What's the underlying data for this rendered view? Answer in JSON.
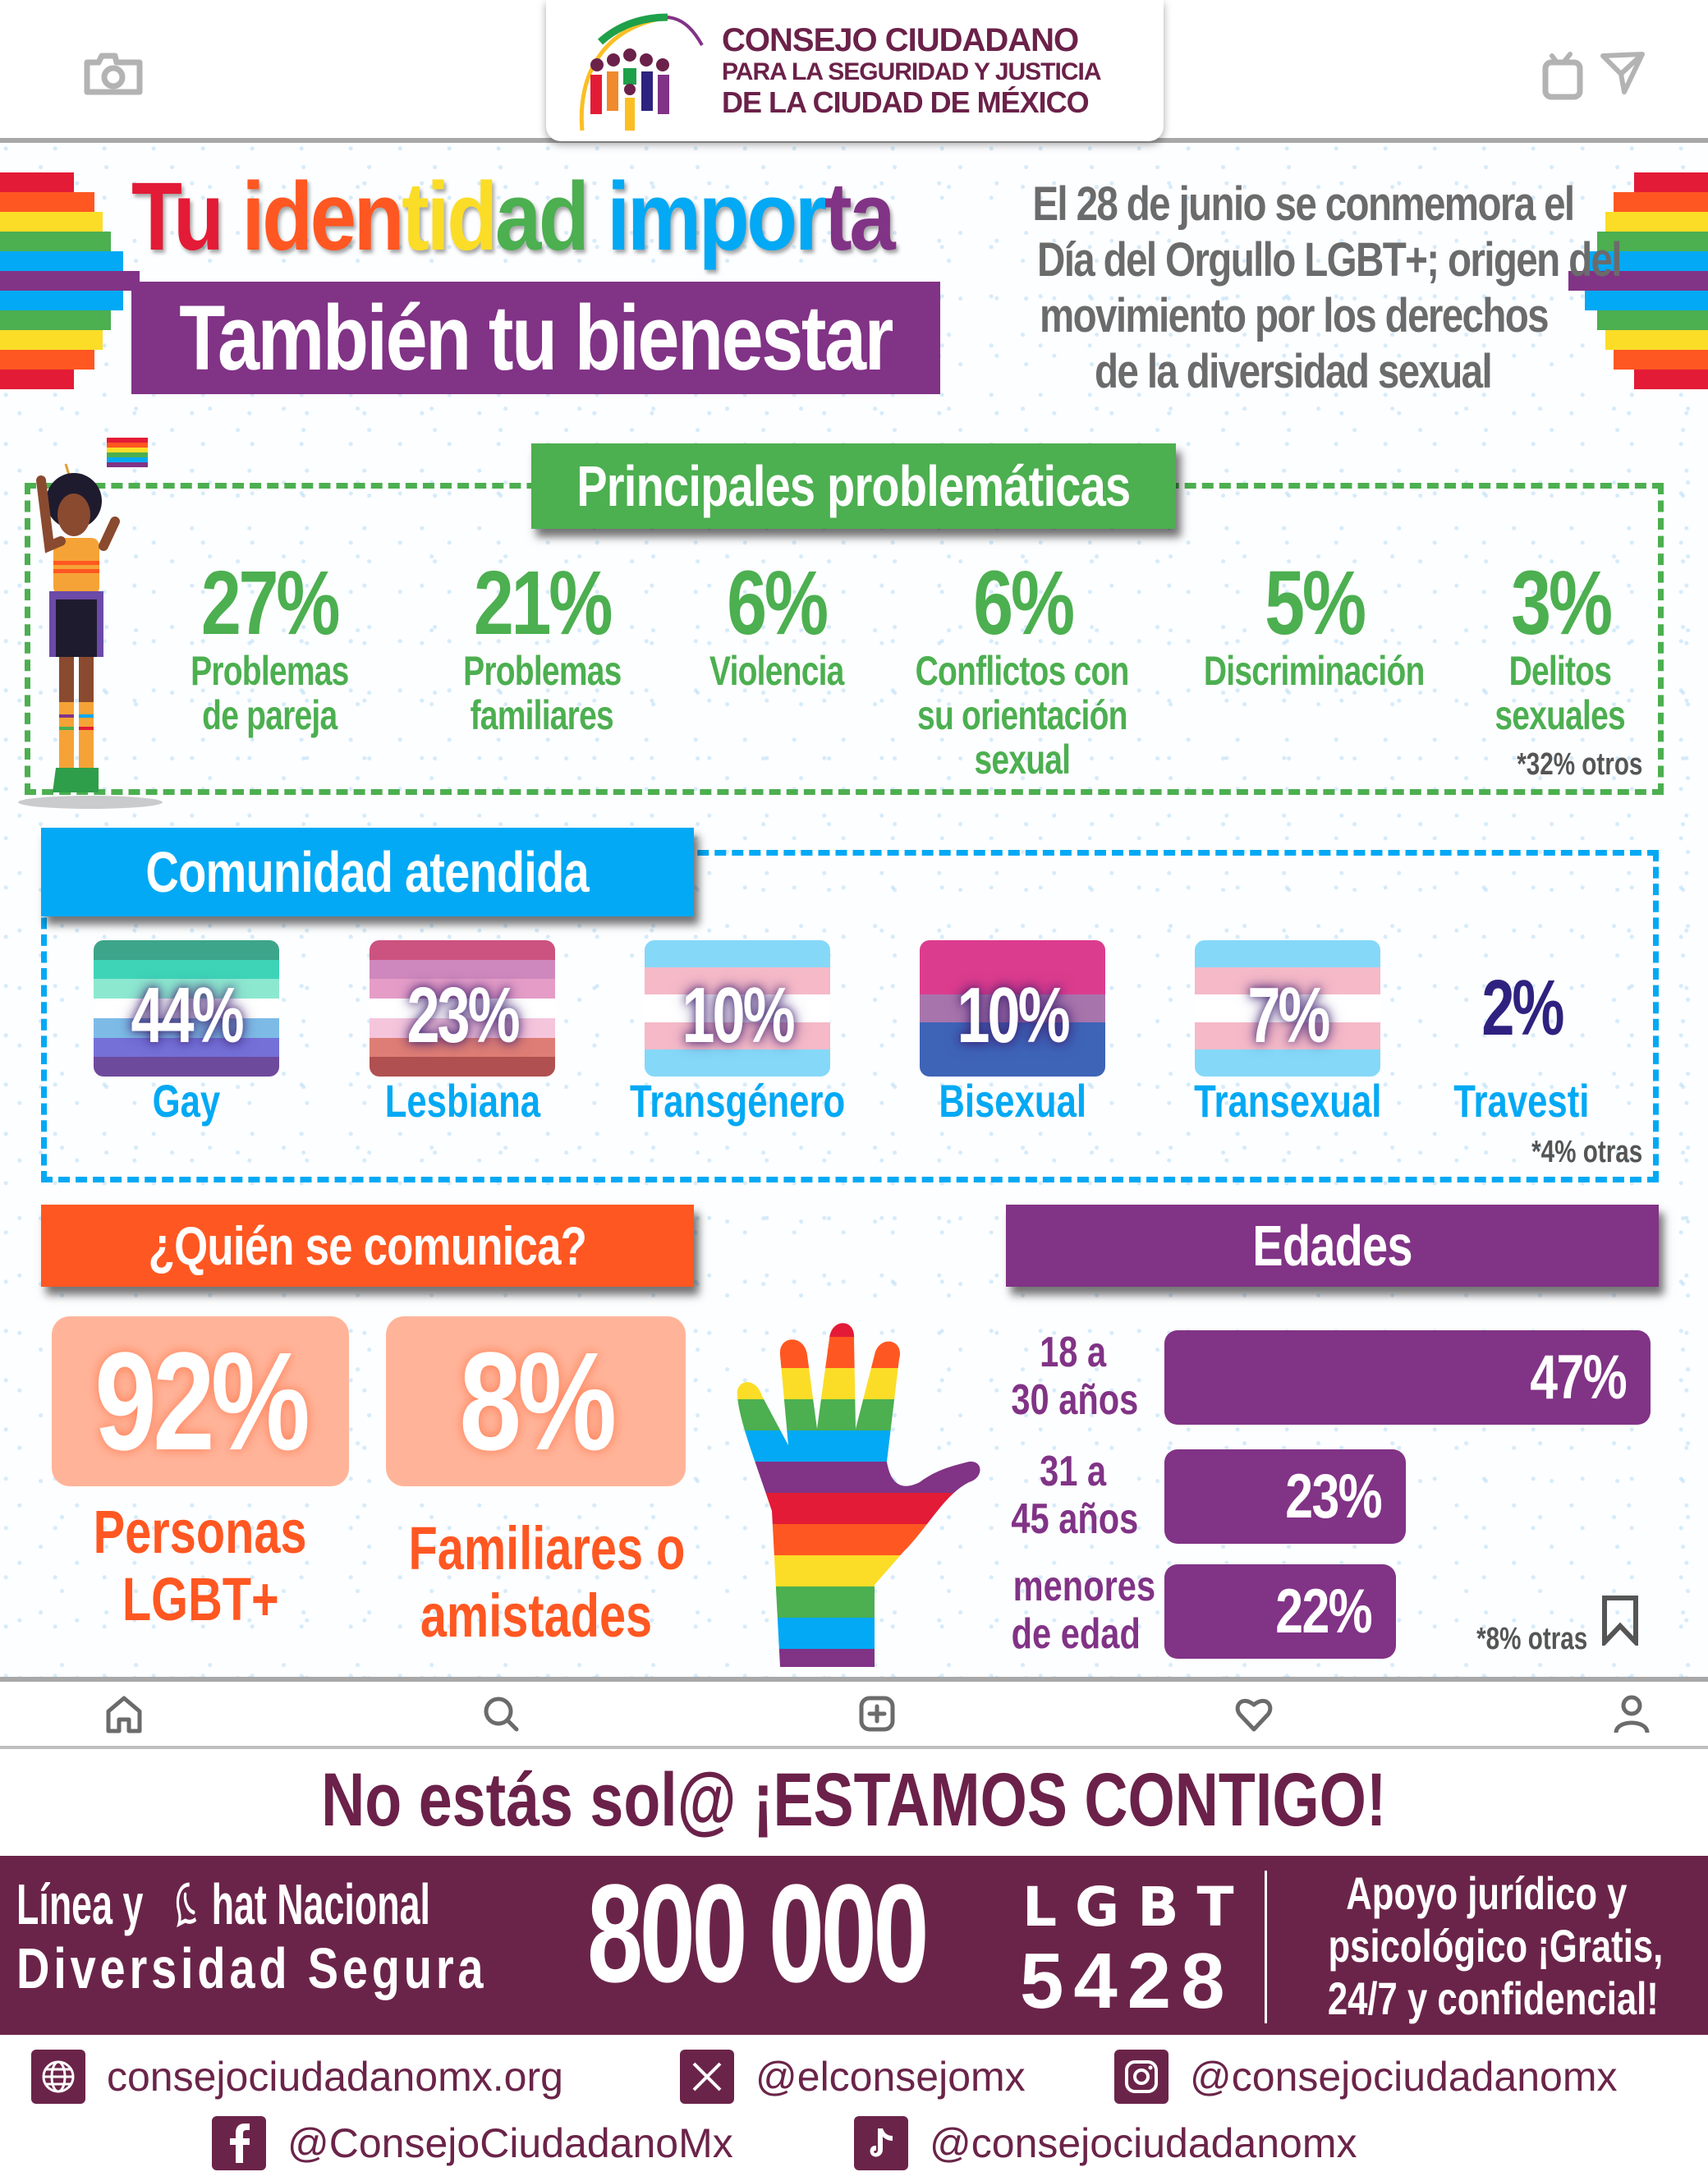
{
  "app_bar": {
    "left_icon": "camera-icon",
    "right_icons": [
      "igtv-icon",
      "send-icon"
    ],
    "logo": {
      "line1": "CONSEJO CIUDADANO",
      "line2": "PARA LA SEGURIDAD Y JUSTICIA",
      "line3": "DE LA CIUDAD DE MÉXICO"
    }
  },
  "hero": {
    "title_parts": [
      {
        "text": "Tu ",
        "color": "#e31b36"
      },
      {
        "text": "iden",
        "color": "#ff5722"
      },
      {
        "text": "tid",
        "color": "#fbdd27"
      },
      {
        "text": "ad ",
        "color": "#4caf50"
      },
      {
        "text": "impor",
        "color": "#03a9f4"
      },
      {
        "text": "ta",
        "color": "#813386"
      }
    ],
    "title": "Tu identidad importa",
    "subtitle": "También tu bienestar",
    "intro_lines": [
      "El 28 de junio se conmemora el",
      "Día del Orgullo LGBT+; origen del",
      "movimiento por los derechos",
      "de la diversidad sexual"
    ]
  },
  "rainbow_colors": [
    "#e31b36",
    "#ff5722",
    "#fbdd27",
    "#4caf50",
    "#03a9f4",
    "#813386",
    "#03a9f4",
    "#4caf50",
    "#fbdd27",
    "#ff5722",
    "#e31b36"
  ],
  "problematicas": {
    "header": "Principales problemáticas",
    "items": [
      {
        "pct": "27%",
        "label_lines": [
          "Problemas",
          "de pareja"
        ]
      },
      {
        "pct": "21%",
        "label_lines": [
          "Problemas",
          "familiares"
        ]
      },
      {
        "pct": "6%",
        "label_lines": [
          "Violencia"
        ]
      },
      {
        "pct": "6%",
        "label_lines": [
          "Conflictos con",
          "su orientación",
          "sexual"
        ]
      },
      {
        "pct": "5%",
        "label_lines": [
          "Discriminación"
        ]
      },
      {
        "pct": "3%",
        "label_lines": [
          "Delitos",
          "sexuales"
        ]
      }
    ],
    "footnote": "*32% otros"
  },
  "comunidad": {
    "header": "Comunidad atendida",
    "items": [
      {
        "pct": "44%",
        "label": "Gay",
        "stripes": [
          "#3da58a",
          "#3dd4b8",
          "#8de8d0",
          "#ffffff",
          "#7dbbe6",
          "#7470d8",
          "#6e4a9c"
        ]
      },
      {
        "pct": "23%",
        "label": "Lesbiana",
        "stripes": [
          "#cc5280",
          "#cf88bd",
          "#e59dc8",
          "#ffffff",
          "#f5c5dc",
          "#de7d75",
          "#b05050"
        ]
      },
      {
        "pct": "10%",
        "label": "Transgénero",
        "stripes": [
          "#85d8f8",
          "#f5b9c8",
          "#ffffff",
          "#f5b9c8",
          "#85d8f8"
        ]
      },
      {
        "pct": "10%",
        "label": "Bisexual",
        "stripes": [
          "#dc3c8e",
          "#dc3c8e",
          "#a874ac",
          "#3e64b8",
          "#3e64b8"
        ]
      },
      {
        "pct": "7%",
        "label": "Transexual",
        "stripes": [
          "#85d8f8",
          "#f5b9c8",
          "#ffffff",
          "#f5b9c8",
          "#85d8f8"
        ]
      },
      {
        "pct": "2%",
        "label": "Travesti"
      }
    ],
    "footnote": "*4% otras"
  },
  "quien": {
    "header": "¿Quién se comunica?",
    "items": [
      {
        "pct": "92%",
        "label_lines": [
          "Personas",
          "LGBT+"
        ]
      },
      {
        "pct": "8%",
        "label_lines": [
          "Familiares o",
          "amistades"
        ]
      }
    ]
  },
  "edades": {
    "header": "Edades",
    "items": [
      {
        "label_lines": [
          "18 a",
          "30 años"
        ],
        "pct": "47%",
        "value": 47
      },
      {
        "label_lines": [
          "31 a",
          "45 años"
        ],
        "pct": "23%",
        "value": 23
      },
      {
        "label_lines": [
          "menores",
          "de edad"
        ],
        "pct": "22%",
        "value": 22
      }
    ],
    "footnote": "*8% otras"
  },
  "bottom_nav": {
    "items": [
      "home-icon",
      "search-icon",
      "add-post-icon",
      "heart-icon",
      "profile-icon"
    ]
  },
  "slogan": "No estás sol@ ¡ESTAMOS CONTIGO!",
  "hotline": {
    "line1": "Línea y  hat Nacional",
    "line1_prefix": "Línea y ",
    "line1_suffix": "hat Nacional",
    "line2": "Diversidad Segura",
    "number": "800 000",
    "letters": "LGBT",
    "digits": "5428",
    "support_lines": [
      "Apoyo jurídico y",
      "psicológico ¡Gratis,",
      "24/7 y confidencial!"
    ]
  },
  "socials": [
    {
      "icon": "globe-icon",
      "text": "consejociudadanomx.org"
    },
    {
      "icon": "x-icon",
      "text": "@elconsejomx"
    },
    {
      "icon": "instagram-icon",
      "text": "@consejociudadanomx"
    },
    {
      "icon": "facebook-icon",
      "text": "@ConsejoCiudadanoMx"
    },
    {
      "icon": "tiktok-icon",
      "text": "@consejociudadanomx"
    }
  ],
  "colors": {
    "green": "#4caf50",
    "blue": "#03a9f4",
    "orange": "#ff5722",
    "purple": "#813386",
    "maroon": "#6b2449",
    "peach": "#ffb49a",
    "travesti_navy": "#2e2280"
  }
}
